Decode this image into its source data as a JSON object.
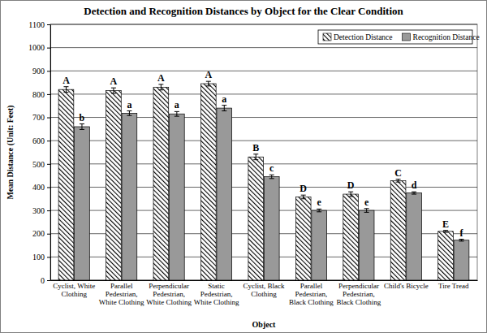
{
  "chart_data": {
    "type": "bar",
    "title": "Detection and Recognition Distances by Object for the Clear Condition",
    "x_label": "Object",
    "y_label": "Mean Distance (Unit: Feet)",
    "categories": [
      "Cyclist, White Clothing",
      "Parallel Pedestrian, White Clothing",
      "Perpendicular Pedestrian, White Clothing",
      "Static Pedestrian, White Clothing",
      "Cyclist, Black Clothing",
      "Parallel Pedestrian, Black Clothing",
      "Perpendicular Pedestrian, Black Clothing",
      "Child's Bicycle",
      "Tire Tread"
    ],
    "series": [
      {
        "name": "Detection Distance",
        "color": "#000000",
        "values": [
          820,
          815,
          830,
          845,
          530,
          358,
          370,
          428,
          210
        ],
        "errors": [
          12,
          12,
          12,
          10,
          12,
          8,
          10,
          6,
          4
        ],
        "letters": [
          "A",
          "A",
          "A",
          "A",
          "B",
          "D",
          "D",
          "C",
          "E"
        ]
      },
      {
        "name": "Recognition Distance",
        "color": "#999999",
        "values": [
          660,
          718,
          715,
          740,
          445,
          300,
          300,
          375,
          172
        ],
        "errors": [
          12,
          10,
          10,
          12,
          8,
          6,
          8,
          5,
          4
        ],
        "letters": [
          "b",
          "a",
          "a",
          "a",
          "c",
          "e",
          "e",
          "d",
          "f"
        ]
      }
    ],
    "ylim": [
      0,
      1100
    ],
    "yticks": [
      0,
      100,
      200,
      300,
      400,
      500,
      600,
      700,
      800,
      900,
      1000,
      1100
    ],
    "grid": true,
    "legend": "top-right"
  }
}
